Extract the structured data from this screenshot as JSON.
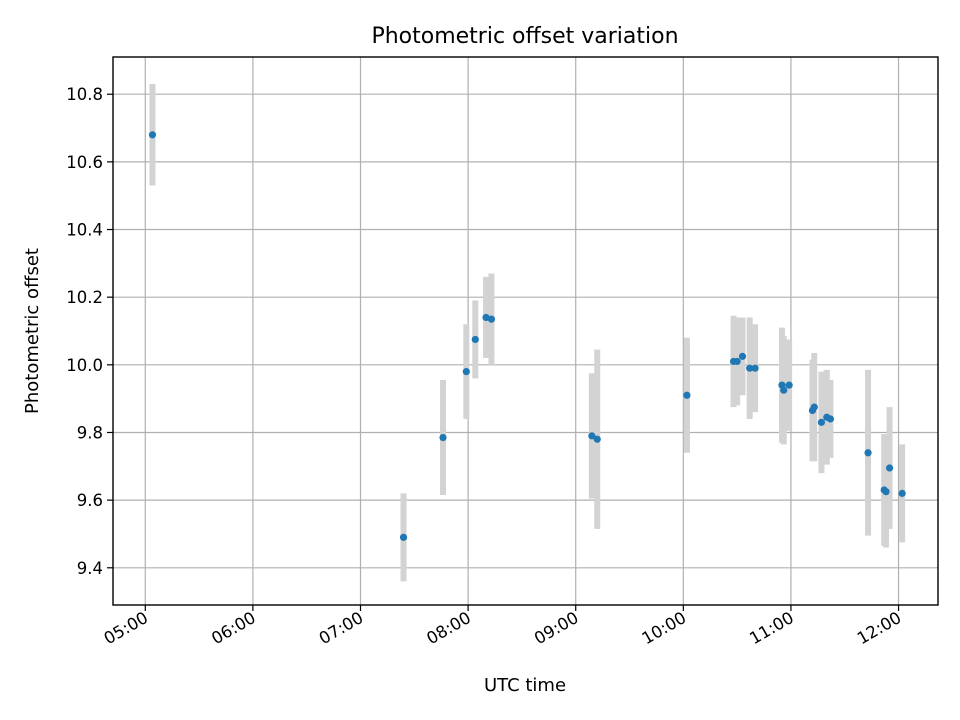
{
  "chart_data": {
    "type": "scatter",
    "title": "Photometric offset variation",
    "xlabel": "UTC time",
    "ylabel": "Photometric offset",
    "x_type": "time",
    "xlim": [
      "04:42",
      "12:22"
    ],
    "ylim": [
      9.29,
      10.91
    ],
    "x_ticks": [
      "05:00",
      "06:00",
      "07:00",
      "08:00",
      "09:00",
      "10:00",
      "11:00",
      "12:00"
    ],
    "y_ticks": [
      9.4,
      9.6,
      9.8,
      10.0,
      10.2,
      10.4,
      10.6,
      10.8
    ],
    "y_tick_labels": [
      "9.4",
      "9.6",
      "9.8",
      "10.0",
      "10.2",
      "10.4",
      "10.6",
      "10.8"
    ],
    "grid": true,
    "colors": {
      "point": "#1f77b4",
      "errorbar": "#d3d3d3"
    },
    "points": [
      {
        "x": "05:04",
        "y": 10.68,
        "err": 0.15
      },
      {
        "x": "07:24",
        "y": 9.49,
        "err": 0.13
      },
      {
        "x": "07:46",
        "y": 9.785,
        "err": 0.17
      },
      {
        "x": "07:59",
        "y": 9.98,
        "err": 0.14
      },
      {
        "x": "08:04",
        "y": 10.075,
        "err": 0.115
      },
      {
        "x": "08:10",
        "y": 10.14,
        "err": 0.12
      },
      {
        "x": "08:13",
        "y": 10.135,
        "err": 0.135
      },
      {
        "x": "09:09",
        "y": 9.79,
        "err": 0.185
      },
      {
        "x": "09:12",
        "y": 9.78,
        "err": 0.265
      },
      {
        "x": "10:02",
        "y": 9.91,
        "err": 0.17
      },
      {
        "x": "10:28",
        "y": 10.01,
        "err": 0.135
      },
      {
        "x": "10:30",
        "y": 10.01,
        "err": 0.13
      },
      {
        "x": "10:33",
        "y": 10.025,
        "err": 0.115
      },
      {
        "x": "10:37",
        "y": 9.99,
        "err": 0.15
      },
      {
        "x": "10:40",
        "y": 9.99,
        "err": 0.13
      },
      {
        "x": "10:55",
        "y": 9.94,
        "err": 0.17
      },
      {
        "x": "10:56",
        "y": 9.925,
        "err": 0.16
      },
      {
        "x": "10:59",
        "y": 9.94,
        "err": 0.135
      },
      {
        "x": "11:12",
        "y": 9.865,
        "err": 0.15
      },
      {
        "x": "11:13",
        "y": 9.875,
        "err": 0.16
      },
      {
        "x": "11:17",
        "y": 9.83,
        "err": 0.15
      },
      {
        "x": "11:20",
        "y": 9.845,
        "err": 0.14
      },
      {
        "x": "11:22",
        "y": 9.84,
        "err": 0.115
      },
      {
        "x": "11:43",
        "y": 9.74,
        "err": 0.245
      },
      {
        "x": "11:52",
        "y": 9.63,
        "err": 0.165
      },
      {
        "x": "11:53",
        "y": 9.625,
        "err": 0.165
      },
      {
        "x": "11:55",
        "y": 9.695,
        "err": 0.18
      },
      {
        "x": "12:02",
        "y": 9.62,
        "err": 0.145
      }
    ]
  }
}
